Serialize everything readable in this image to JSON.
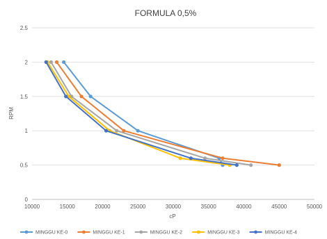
{
  "chart_data": {
    "type": "line",
    "title": "FORMULA 0,5%",
    "xlabel": "cP",
    "ylabel": "RPM",
    "xlim": [
      10000,
      50000
    ],
    "ylim": [
      0,
      2.5
    ],
    "xticks": [
      "10000",
      "15000",
      "20000",
      "25000",
      "30000",
      "35000",
      "40000",
      "45000",
      "50000"
    ],
    "yticks": [
      "0",
      "0.5",
      "1",
      "1.5",
      "2",
      "2.5"
    ],
    "grid": "horizontal",
    "legend_position": "bottom",
    "series": [
      {
        "name": "MINGGU KE-0",
        "color": "#5B9BD5",
        "points": [
          [
            14500,
            2
          ],
          [
            18300,
            1.5
          ],
          [
            25000,
            1
          ],
          [
            36500,
            0.6
          ],
          [
            37000,
            0.5
          ]
        ]
      },
      {
        "name": "MINGGU KE-1",
        "color": "#ED7D31",
        "points": [
          [
            13500,
            2
          ],
          [
            17000,
            1.5
          ],
          [
            23000,
            1
          ],
          [
            37000,
            0.6
          ],
          [
            45000,
            0.5
          ]
        ]
      },
      {
        "name": "MINGGU KE-2",
        "color": "#A5A5A5",
        "points": [
          [
            12700,
            2
          ],
          [
            15600,
            1.5
          ],
          [
            22000,
            1
          ],
          [
            34500,
            0.6
          ],
          [
            41000,
            0.5
          ]
        ]
      },
      {
        "name": "MINGGU KE-3",
        "color": "#FFC000",
        "points": [
          [
            12200,
            2
          ],
          [
            15200,
            1.5
          ],
          [
            21000,
            1
          ],
          [
            31000,
            0.6
          ],
          [
            38000,
            0.5
          ]
        ]
      },
      {
        "name": "MINGGU KE-4",
        "color": "#4472C4",
        "points": [
          [
            12000,
            2
          ],
          [
            14800,
            1.5
          ],
          [
            20500,
            1
          ],
          [
            32500,
            0.6
          ],
          [
            39000,
            0.5
          ]
        ]
      }
    ]
  }
}
